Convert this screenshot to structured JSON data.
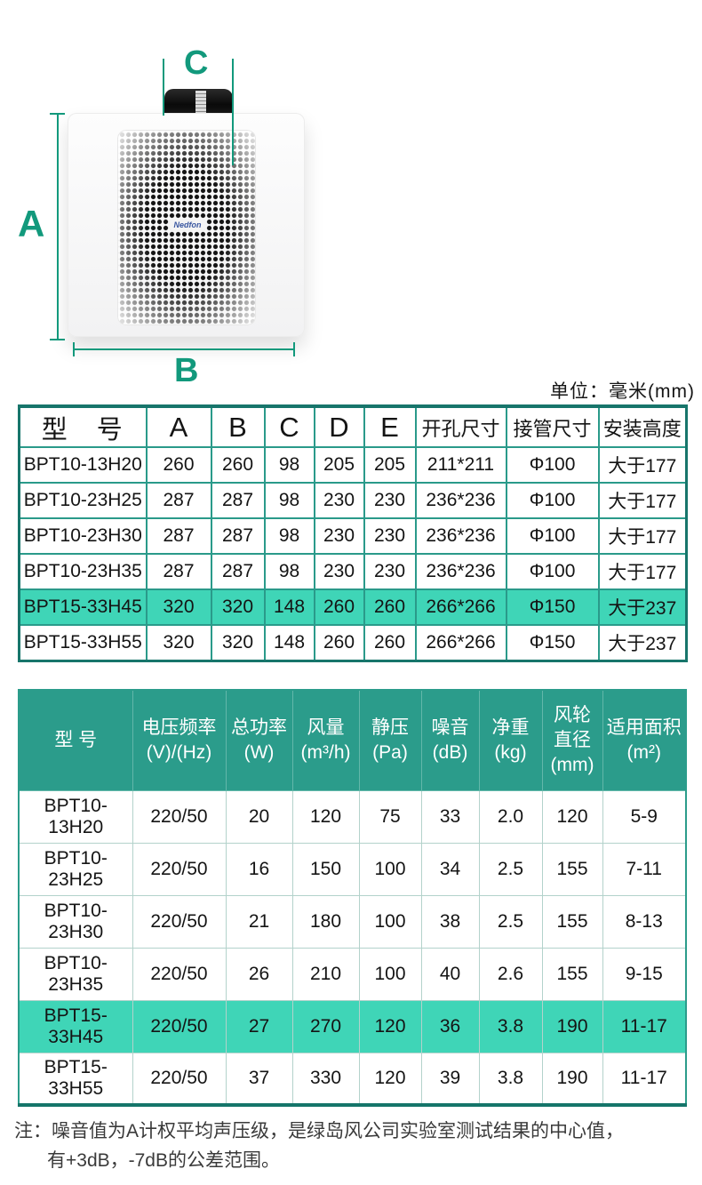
{
  "colors": {
    "table_border_teal": "#2a9a8a",
    "table_border_dark": "#17756b",
    "spec_header_green": "#2b9c8b",
    "highlight_row": "#3fd5b7",
    "dimension_green": "#12997c"
  },
  "unit_label": "单位：毫米(mm)",
  "diagram": {
    "logo": "Nedfon",
    "labels": {
      "a": "A",
      "b": "B",
      "c": "C",
      "d": "D",
      "e": "E"
    }
  },
  "dimension_table": {
    "headers": [
      "型　号",
      "A",
      "B",
      "C",
      "D",
      "E",
      "开孔尺寸",
      "接管尺寸",
      "安装高度"
    ],
    "rows": [
      {
        "highlight": false,
        "cells": [
          "BPT10-13H20",
          "260",
          "260",
          "98",
          "205",
          "205",
          "211*211",
          "Φ100",
          "大于177"
        ]
      },
      {
        "highlight": false,
        "cells": [
          "BPT10-23H25",
          "287",
          "287",
          "98",
          "230",
          "230",
          "236*236",
          "Φ100",
          "大于177"
        ]
      },
      {
        "highlight": false,
        "cells": [
          "BPT10-23H30",
          "287",
          "287",
          "98",
          "230",
          "230",
          "236*236",
          "Φ100",
          "大于177"
        ]
      },
      {
        "highlight": false,
        "cells": [
          "BPT10-23H35",
          "287",
          "287",
          "98",
          "230",
          "230",
          "236*236",
          "Φ100",
          "大于177"
        ]
      },
      {
        "highlight": true,
        "cells": [
          "BPT15-33H45",
          "320",
          "320",
          "148",
          "260",
          "260",
          "266*266",
          "Φ150",
          "大于237"
        ]
      },
      {
        "highlight": false,
        "cells": [
          "BPT15-33H55",
          "320",
          "320",
          "148",
          "260",
          "260",
          "266*266",
          "Φ150",
          "大于237"
        ]
      }
    ]
  },
  "spec_table": {
    "headers": [
      [
        "型 号"
      ],
      [
        "电压频率",
        "(V)/(Hz)"
      ],
      [
        "总功率",
        "(W)"
      ],
      [
        "风量",
        "(m³/h)"
      ],
      [
        "静压",
        "(Pa)"
      ],
      [
        "噪音",
        "(dB)"
      ],
      [
        "净重",
        "(kg)"
      ],
      [
        "风轮",
        "直径",
        "(mm)"
      ],
      [
        "适用面积",
        "(m²)"
      ]
    ],
    "rows": [
      {
        "highlight": false,
        "cells": [
          "BPT10-13H20",
          "220/50",
          "20",
          "120",
          "75",
          "33",
          "2.0",
          "120",
          "5-9"
        ]
      },
      {
        "highlight": false,
        "cells": [
          "BPT10-23H25",
          "220/50",
          "16",
          "150",
          "100",
          "34",
          "2.5",
          "155",
          "7-11"
        ]
      },
      {
        "highlight": false,
        "cells": [
          "BPT10-23H30",
          "220/50",
          "21",
          "180",
          "100",
          "38",
          "2.5",
          "155",
          "8-13"
        ]
      },
      {
        "highlight": false,
        "cells": [
          "BPT10-23H35",
          "220/50",
          "26",
          "210",
          "100",
          "40",
          "2.6",
          "155",
          "9-15"
        ]
      },
      {
        "highlight": true,
        "cells": [
          "BPT15-33H45",
          "220/50",
          "27",
          "270",
          "120",
          "36",
          "3.8",
          "190",
          "11-17"
        ]
      },
      {
        "highlight": false,
        "cells": [
          "BPT15-33H55",
          "220/50",
          "37",
          "330",
          "120",
          "39",
          "3.8",
          "190",
          "11-17"
        ]
      }
    ]
  },
  "note": {
    "line1": "注：噪音值为A计权平均声压级，是绿岛风公司实验室测试结果的中心值，",
    "line2": "有+3dB，-7dB的公差范围。"
  }
}
